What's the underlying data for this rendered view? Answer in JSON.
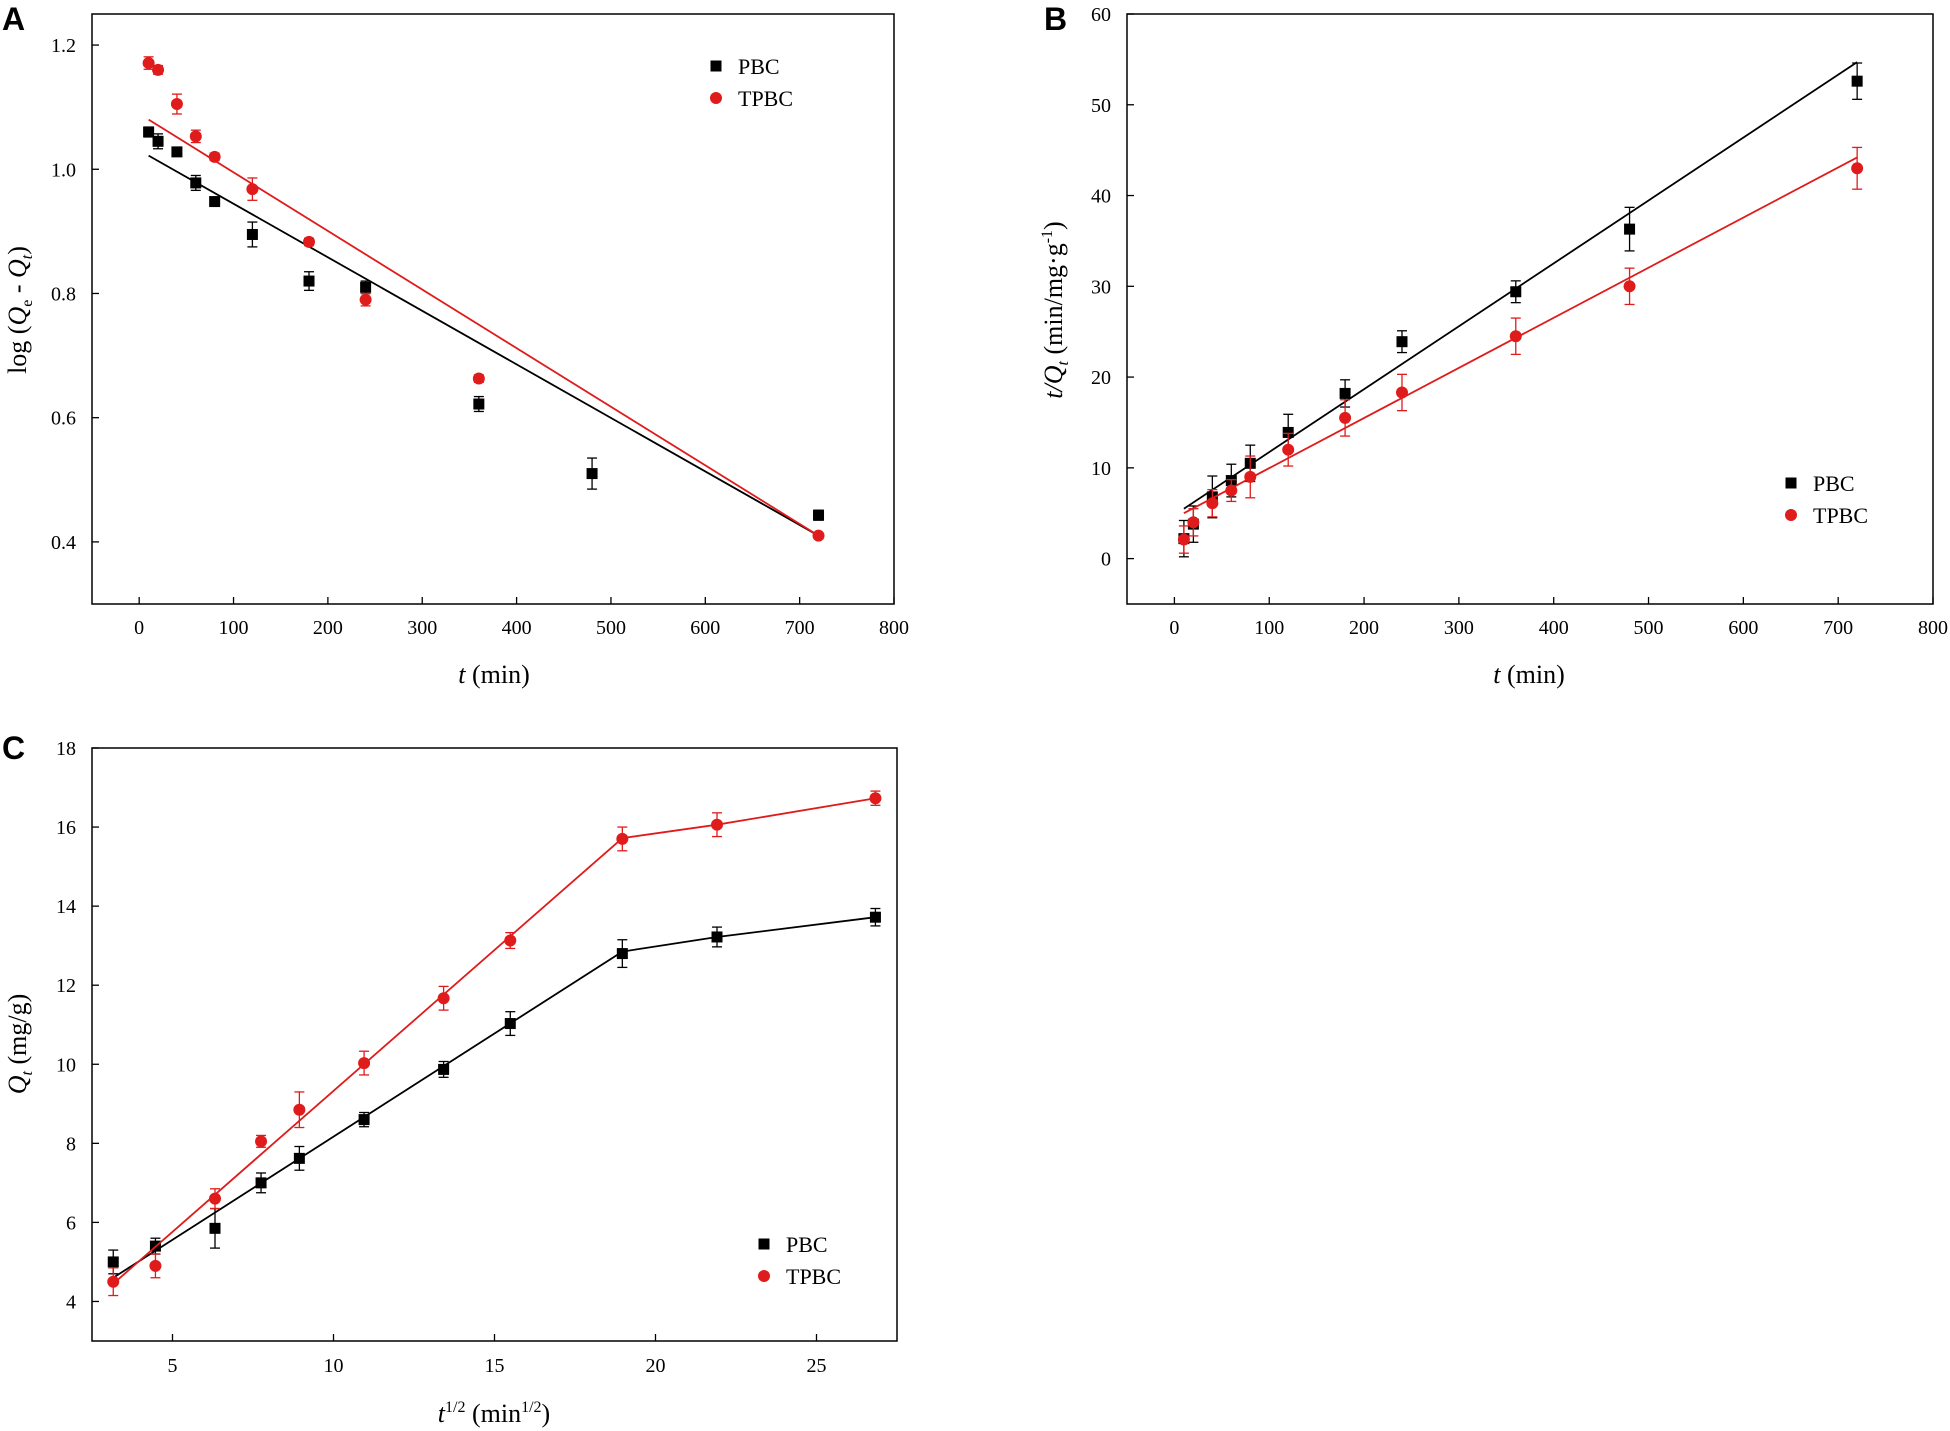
{
  "colors": {
    "pbc": "#000000",
    "tpbc": "#e01b1b",
    "axis": "#000000"
  },
  "chart_data": [
    {
      "panel": "A",
      "type": "scatter",
      "x_tick_labels": [
        "0",
        "100",
        "200",
        "300",
        "400",
        "500",
        "600",
        "700",
        "800"
      ],
      "y_tick_labels": [
        "0.4",
        "0.6",
        "0.8",
        "1.0",
        "1.2"
      ],
      "xlim": [
        -50,
        800
      ],
      "ylim": [
        0.3,
        1.25
      ],
      "xlabel": {
        "italic": "t",
        "rest": " (min)"
      },
      "ylabel": {
        "pre": "log (",
        "q1": "Q",
        "sub1": "e",
        "dash": " - ",
        "q2": "Q",
        "sub2": "t",
        "post": ")"
      },
      "legend_position": "top-right",
      "series": [
        {
          "name": "PBC",
          "marker": "square",
          "color": "#000000",
          "x": [
            10,
            20,
            40,
            60,
            80,
            120,
            180,
            240,
            360,
            480,
            720
          ],
          "y": [
            1.06,
            1.045,
            1.028,
            0.978,
            0.948,
            0.895,
            0.82,
            0.81,
            0.622,
            0.51,
            0.443
          ],
          "err": [
            0.008,
            0.012,
            0.006,
            0.012,
            0.005,
            0.02,
            0.015,
            0.01,
            0.012,
            0.025,
            0.008
          ],
          "fit": {
            "x": [
              10,
              720
            ],
            "y": [
              1.022,
              0.41
            ]
          }
        },
        {
          "name": "TPBC",
          "marker": "circle",
          "color": "#e01b1b",
          "x": [
            10,
            20,
            40,
            60,
            80,
            120,
            180,
            240,
            360,
            720
          ],
          "y": [
            1.171,
            1.16,
            1.105,
            1.053,
            1.02,
            0.968,
            0.883,
            0.79,
            0.663,
            0.41
          ],
          "err": [
            0.01,
            0.007,
            0.016,
            0.01,
            0.006,
            0.018,
            0.006,
            0.01,
            0.006,
            0.005
          ],
          "fit": {
            "x": [
              10,
              720
            ],
            "y": [
              1.08,
              0.41
            ]
          }
        }
      ]
    },
    {
      "panel": "B",
      "type": "scatter",
      "x_tick_labels": [
        "0",
        "100",
        "200",
        "300",
        "400",
        "500",
        "600",
        "700",
        "800"
      ],
      "y_tick_labels": [
        "0",
        "10",
        "20",
        "30",
        "40",
        "50",
        "60"
      ],
      "xlim": [
        -50,
        800
      ],
      "ylim": [
        -5,
        60
      ],
      "xlabel": {
        "italic": "t",
        "rest": " (min)"
      },
      "ylabel": {
        "pre": "t/",
        "q": "Q",
        "sub": "t",
        "mid": " (min/mg·g",
        "sup": "-1",
        "post": ")"
      },
      "legend_position": "center-right",
      "series": [
        {
          "name": "PBC",
          "marker": "square",
          "color": "#000000",
          "x": [
            10,
            20,
            40,
            60,
            80,
            120,
            180,
            240,
            360,
            480,
            720
          ],
          "y": [
            2.2,
            3.8,
            6.8,
            8.6,
            10.5,
            13.9,
            18.2,
            23.9,
            29.4,
            36.3,
            52.6
          ],
          "err": [
            2.0,
            2.0,
            2.3,
            1.8,
            2.0,
            2.0,
            1.5,
            1.2,
            1.2,
            2.4,
            2.0
          ],
          "fit": {
            "x": [
              10,
              720
            ],
            "y": [
              5.5,
              54.7
            ]
          }
        },
        {
          "name": "TPBC",
          "marker": "circle",
          "color": "#e01b1b",
          "x": [
            10,
            20,
            40,
            60,
            80,
            120,
            180,
            240,
            360,
            480,
            720
          ],
          "y": [
            2.1,
            4.0,
            6.1,
            7.5,
            9.0,
            12.0,
            15.5,
            18.3,
            24.5,
            30.0,
            43.0
          ],
          "err": [
            1.5,
            1.5,
            1.5,
            1.2,
            2.3,
            1.8,
            2.0,
            2.0,
            2.0,
            2.0,
            2.3
          ],
          "fit": {
            "x": [
              10,
              720
            ],
            "y": [
              5.0,
              44.2
            ]
          }
        }
      ]
    },
    {
      "panel": "C",
      "type": "line",
      "x_tick_labels": [
        "5",
        "10",
        "15",
        "20",
        "25"
      ],
      "y_tick_labels": [
        "4",
        "6",
        "8",
        "10",
        "12",
        "14",
        "16",
        "18"
      ],
      "xlim": [
        2.5,
        27.5
      ],
      "ylim": [
        3,
        18
      ],
      "xlabel": {
        "t": "t",
        "sup1": "1/2",
        "mid": " (min",
        "sup2": "1/2",
        "post": ")"
      },
      "ylabel": {
        "q": "Q",
        "sub": "t",
        "rest": " (mg/g)"
      },
      "legend_position": "bottom-right",
      "series": [
        {
          "name": "PBC",
          "marker": "square",
          "color": "#000000",
          "x": [
            3.16,
            4.47,
            6.32,
            7.75,
            8.94,
            10.95,
            13.42,
            15.49,
            18.97,
            21.91,
            26.83
          ],
          "y": [
            5.0,
            5.4,
            5.85,
            7.0,
            7.62,
            8.6,
            9.87,
            11.03,
            12.8,
            13.22,
            13.72
          ],
          "err": [
            0.3,
            0.2,
            0.5,
            0.25,
            0.3,
            0.18,
            0.2,
            0.3,
            0.35,
            0.25,
            0.22
          ],
          "fit_segments": [
            {
              "x": [
                3.16,
                18.97
              ],
              "y": [
                4.6,
                12.85
              ]
            },
            {
              "x": [
                18.97,
                21.91,
                26.83
              ],
              "y": [
                12.85,
                13.22,
                13.72
              ]
            }
          ]
        },
        {
          "name": "TPBC",
          "marker": "circle",
          "color": "#e01b1b",
          "x": [
            3.16,
            4.47,
            6.32,
            7.75,
            8.94,
            10.95,
            13.42,
            15.49,
            18.97,
            21.91,
            26.83
          ],
          "y": [
            4.5,
            4.9,
            6.6,
            8.05,
            8.85,
            10.03,
            11.67,
            13.13,
            15.7,
            16.06,
            16.73
          ],
          "err": [
            0.35,
            0.3,
            0.25,
            0.15,
            0.45,
            0.3,
            0.3,
            0.2,
            0.3,
            0.3,
            0.18
          ],
          "fit_segments": [
            {
              "x": [
                3.16,
                18.97
              ],
              "y": [
                4.45,
                15.72
              ]
            },
            {
              "x": [
                18.97,
                21.91,
                26.83
              ],
              "y": [
                15.72,
                16.06,
                16.73
              ]
            }
          ]
        }
      ]
    }
  ]
}
